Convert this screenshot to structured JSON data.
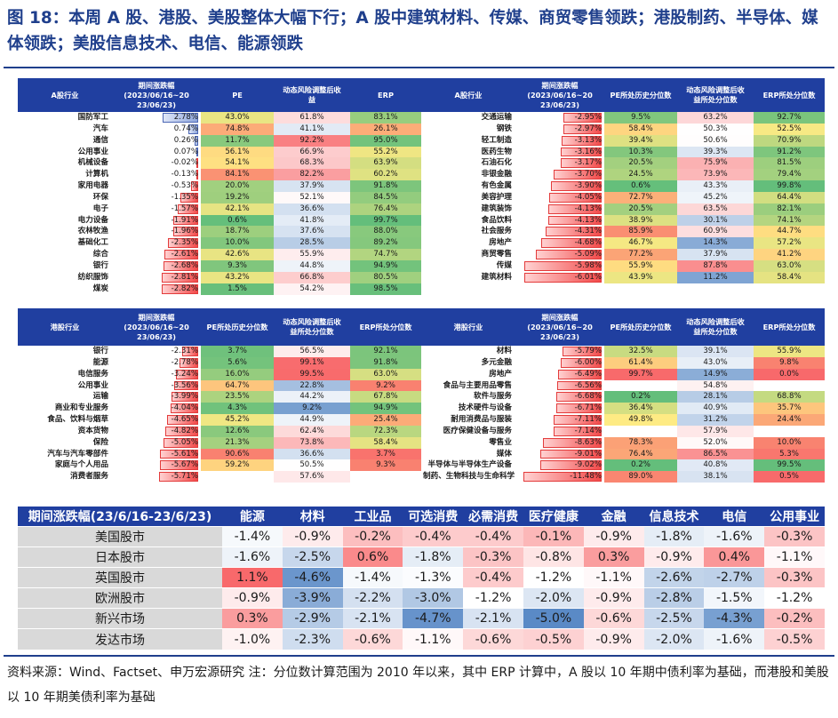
{
  "title": "图 18：本周 A 股、港股、美股整体大幅下行；A 股中建筑材料、传媒、商贸零售领跌；港股制药、半导体、媒体领跌；美股信息技术、电信、能源领跌",
  "a_headers": [
    "A股行业",
    "期间涨跌幅\n(2023/06/16~20\n23/06/23)",
    "PE",
    "动态风险调整后收\n益",
    "ERP"
  ],
  "a_right_headers": [
    "A股行业",
    "期间涨跌幅\n(2023/06/16~20\n23/06/23)",
    "PE所处历史分位数",
    "动态风险调整后收\n益所处分位数",
    "ERP所处分位数"
  ],
  "hk_headers": [
    "港股行业",
    "期间涨跌幅\n(2023/06/16~20\n23/06/23)",
    "PE所处历史分位数",
    "动态风险调整后收\n益所处分位数",
    "ERP所处分位数"
  ],
  "us_headers": [
    "港股行业",
    "期间涨跌幅\n(2023/06/16~20\n23/06/23)",
    "PE所处历史分位数",
    "动态风险调整后收\n益所处分位数",
    "ERP所处分位数"
  ],
  "a_left_rows": [
    {
      "name": "国防军工",
      "chg": "2.78%",
      "chg_v": 2.78,
      "pe": "43.0%",
      "pe_v": 43.0,
      "risk": "61.8%",
      "risk_v": 61.8,
      "erp": "83.1%",
      "erp_v": 83.1
    },
    {
      "name": "汽车",
      "chg": "0.74%",
      "chg_v": 0.74,
      "pe": "74.8%",
      "pe_v": 74.8,
      "risk": "41.1%",
      "risk_v": 41.1,
      "erp": "26.1%",
      "erp_v": 26.1
    },
    {
      "name": "通信",
      "chg": "0.26%",
      "chg_v": 0.26,
      "pe": "11.7%",
      "pe_v": 11.7,
      "risk": "92.2%",
      "risk_v": 92.2,
      "erp": "95.0%",
      "erp_v": 95.0
    },
    {
      "name": "公用事业",
      "chg": "0.07%",
      "chg_v": 0.07,
      "pe": "56.1%",
      "pe_v": 56.1,
      "risk": "66.9%",
      "risk_v": 66.9,
      "erp": "55.2%",
      "erp_v": 55.2
    },
    {
      "name": "机械设备",
      "chg": "-0.02%",
      "chg_v": -0.02,
      "pe": "54.1%",
      "pe_v": 54.1,
      "risk": "68.3%",
      "risk_v": 68.3,
      "erp": "63.9%",
      "erp_v": 63.9
    },
    {
      "name": "计算机",
      "chg": "-0.13%",
      "chg_v": -0.13,
      "pe": "84.1%",
      "pe_v": 84.1,
      "risk": "82.2%",
      "risk_v": 82.2,
      "erp": "60.2%",
      "erp_v": 60.2
    },
    {
      "name": "家用电器",
      "chg": "-0.53%",
      "chg_v": -0.53,
      "pe": "20.0%",
      "pe_v": 20.0,
      "risk": "37.9%",
      "risk_v": 37.9,
      "erp": "91.8%",
      "erp_v": 91.8
    },
    {
      "name": "环保",
      "chg": "-1.35%",
      "chg_v": -1.35,
      "pe": "19.2%",
      "pe_v": 19.2,
      "risk": "52.1%",
      "risk_v": 52.1,
      "erp": "84.5%",
      "erp_v": 84.5
    },
    {
      "name": "电子",
      "chg": "-1.57%",
      "chg_v": -1.57,
      "pe": "42.1%",
      "pe_v": 42.1,
      "risk": "36.6%",
      "risk_v": 36.6,
      "erp": "76.4%",
      "erp_v": 76.4
    },
    {
      "name": "电力设备",
      "chg": "-1.91%",
      "chg_v": -1.91,
      "pe": "0.6%",
      "pe_v": 0.6,
      "risk": "41.8%",
      "risk_v": 41.8,
      "erp": "99.7%",
      "erp_v": 99.7
    },
    {
      "name": "农林牧渔",
      "chg": "-1.96%",
      "chg_v": -1.96,
      "pe": "18.7%",
      "pe_v": 18.7,
      "risk": "37.6%",
      "risk_v": 37.6,
      "erp": "88.0%",
      "erp_v": 88.0
    },
    {
      "name": "基础化工",
      "chg": "-2.35%",
      "chg_v": -2.35,
      "pe": "10.0%",
      "pe_v": 10.0,
      "risk": "28.5%",
      "risk_v": 28.5,
      "erp": "89.2%",
      "erp_v": 89.2
    },
    {
      "name": "综合",
      "chg": "-2.61%",
      "chg_v": -2.61,
      "pe": "42.6%",
      "pe_v": 42.6,
      "risk": "55.9%",
      "risk_v": 55.9,
      "erp": "74.7%",
      "erp_v": 74.7
    },
    {
      "name": "银行",
      "chg": "-2.68%",
      "chg_v": -2.68,
      "pe": "9.3%",
      "pe_v": 9.3,
      "risk": "44.8%",
      "risk_v": 44.8,
      "erp": "94.9%",
      "erp_v": 94.9
    },
    {
      "name": "纺织服饰",
      "chg": "-2.81%",
      "chg_v": -2.81,
      "pe": "43.2%",
      "pe_v": 43.2,
      "risk": "66.8%",
      "risk_v": 66.8,
      "erp": "80.5%",
      "erp_v": 80.5
    },
    {
      "name": "煤炭",
      "chg": "-2.82%",
      "chg_v": -2.82,
      "pe": "1.5%",
      "pe_v": 1.5,
      "risk": "54.2%",
      "risk_v": 54.2,
      "erp": "98.5%",
      "erp_v": 98.5
    }
  ],
  "a_right_rows": [
    {
      "name": "交通运输",
      "chg": "-2.95%",
      "chg_v": -2.95,
      "pe": "9.5%",
      "pe_v": 9.5,
      "risk": "63.2%",
      "risk_v": 63.2,
      "erp": "92.7%",
      "erp_v": 92.7
    },
    {
      "name": "钢铁",
      "chg": "-2.97%",
      "chg_v": -2.97,
      "pe": "58.4%",
      "pe_v": 58.4,
      "risk": "50.3%",
      "risk_v": 50.3,
      "erp": "52.5%",
      "erp_v": 52.5
    },
    {
      "name": "轻工制造",
      "chg": "-3.13%",
      "chg_v": -3.13,
      "pe": "39.4%",
      "pe_v": 39.4,
      "risk": "50.6%",
      "risk_v": 50.6,
      "erp": "70.9%",
      "erp_v": 70.9
    },
    {
      "name": "医药生物",
      "chg": "-3.16%",
      "chg_v": -3.16,
      "pe": "10.3%",
      "pe_v": 10.3,
      "risk": "39.3%",
      "risk_v": 39.3,
      "erp": "91.2%",
      "erp_v": 91.2
    },
    {
      "name": "石油石化",
      "chg": "-3.17%",
      "chg_v": -3.17,
      "pe": "20.5%",
      "pe_v": 20.5,
      "risk": "75.9%",
      "risk_v": 75.9,
      "erp": "81.5%",
      "erp_v": 81.5
    },
    {
      "name": "非银金融",
      "chg": "-3.70%",
      "chg_v": -3.7,
      "pe": "24.5%",
      "pe_v": 24.5,
      "risk": "73.9%",
      "risk_v": 73.9,
      "erp": "79.4%",
      "erp_v": 79.4
    },
    {
      "name": "有色金属",
      "chg": "-3.90%",
      "chg_v": -3.9,
      "pe": "0.6%",
      "pe_v": 0.6,
      "risk": "43.3%",
      "risk_v": 43.3,
      "erp": "99.8%",
      "erp_v": 99.8
    },
    {
      "name": "美容护理",
      "chg": "-4.05%",
      "chg_v": -4.05,
      "pe": "72.7%",
      "pe_v": 72.7,
      "risk": "45.2%",
      "risk_v": 45.2,
      "erp": "64.4%",
      "erp_v": 64.4
    },
    {
      "name": "建筑装饰",
      "chg": "-4.13%",
      "chg_v": -4.13,
      "pe": "20.5%",
      "pe_v": 20.5,
      "risk": "63.5%",
      "risk_v": 63.5,
      "erp": "82.1%",
      "erp_v": 82.1
    },
    {
      "name": "食品饮料",
      "chg": "-4.13%",
      "chg_v": -4.13,
      "pe": "38.9%",
      "pe_v": 38.9,
      "risk": "30.1%",
      "risk_v": 30.1,
      "erp": "74.1%",
      "erp_v": 74.1
    },
    {
      "name": "社会服务",
      "chg": "-4.31%",
      "chg_v": -4.31,
      "pe": "85.9%",
      "pe_v": 85.9,
      "risk": "60.9%",
      "risk_v": 60.9,
      "erp": "44.7%",
      "erp_v": 44.7
    },
    {
      "name": "房地产",
      "chg": "-4.68%",
      "chg_v": -4.68,
      "pe": "46.7%",
      "pe_v": 46.7,
      "risk": "14.3%",
      "risk_v": 14.3,
      "erp": "57.2%",
      "erp_v": 57.2
    },
    {
      "name": "商贸零售",
      "chg": "-5.09%",
      "chg_v": -5.09,
      "pe": "77.2%",
      "pe_v": 77.2,
      "risk": "37.9%",
      "risk_v": 37.9,
      "erp": "41.2%",
      "erp_v": 41.2
    },
    {
      "name": "传媒",
      "chg": "-5.98%",
      "chg_v": -5.98,
      "pe": "55.9%",
      "pe_v": 55.9,
      "risk": "87.8%",
      "risk_v": 87.8,
      "erp": "63.0%",
      "erp_v": 63.0
    },
    {
      "name": "建筑材料",
      "chg": "-6.01%",
      "chg_v": -6.01,
      "pe": "43.9%",
      "pe_v": 43.9,
      "risk": "11.2%",
      "risk_v": 11.2,
      "erp": "58.4%",
      "erp_v": 58.4
    }
  ],
  "hk_rows": [
    {
      "name": "银行",
      "chg": "-2.31%",
      "chg_v": -2.31,
      "pe": "3.7%",
      "pe_v": 3.7,
      "risk": "56.5%",
      "risk_v": 56.5,
      "erp": "92.1%",
      "erp_v": 92.1
    },
    {
      "name": "能源",
      "chg": "-2.78%",
      "chg_v": -2.78,
      "pe": "5.6%",
      "pe_v": 5.6,
      "risk": "99.1%",
      "risk_v": 99.1,
      "erp": "91.8%",
      "erp_v": 91.8
    },
    {
      "name": "电信服务",
      "chg": "-3.24%",
      "chg_v": -3.24,
      "pe": "16.0%",
      "pe_v": 16.0,
      "risk": "99.5%",
      "risk_v": 99.5,
      "erp": "63.0%",
      "erp_v": 63.0
    },
    {
      "name": "公用事业",
      "chg": "-3.56%",
      "chg_v": -3.56,
      "pe": "64.7%",
      "pe_v": 64.7,
      "risk": "22.8%",
      "risk_v": 22.8,
      "erp": "9.2%",
      "erp_v": 9.2
    },
    {
      "name": "运输",
      "chg": "-3.99%",
      "chg_v": -3.99,
      "pe": "23.5%",
      "pe_v": 23.5,
      "risk": "44.2%",
      "risk_v": 44.2,
      "erp": "67.8%",
      "erp_v": 67.8
    },
    {
      "name": "商业和专业服务",
      "chg": "-4.04%",
      "chg_v": -4.04,
      "pe": "4.3%",
      "pe_v": 4.3,
      "risk": "9.2%",
      "risk_v": 9.2,
      "erp": "94.9%",
      "erp_v": 94.9
    },
    {
      "name": "食品、饮料与烟草",
      "chg": "-4.65%",
      "chg_v": -4.65,
      "pe": "45.2%",
      "pe_v": 45.2,
      "risk": "44.9%",
      "risk_v": 44.9,
      "erp": "25.4%",
      "erp_v": 25.4
    },
    {
      "name": "资本货物",
      "chg": "-4.82%",
      "chg_v": -4.82,
      "pe": "12.6%",
      "pe_v": 12.6,
      "risk": "62.4%",
      "risk_v": 62.4,
      "erp": "72.3%",
      "erp_v": 72.3
    },
    {
      "name": "保险",
      "chg": "-5.05%",
      "chg_v": -5.05,
      "pe": "21.3%",
      "pe_v": 21.3,
      "risk": "73.8%",
      "risk_v": 73.8,
      "erp": "58.4%",
      "erp_v": 58.4
    },
    {
      "name": "汽车与汽车零部件",
      "chg": "-5.61%",
      "chg_v": -5.61,
      "pe": "90.6%",
      "pe_v": 90.6,
      "risk": "36.6%",
      "risk_v": 36.6,
      "erp": "3.7%",
      "erp_v": 3.7
    },
    {
      "name": "家庭与个人用品",
      "chg": "-5.67%",
      "chg_v": -5.67,
      "pe": "59.2%",
      "pe_v": 59.2,
      "risk": "50.5%",
      "risk_v": 50.5,
      "erp": "9.3%",
      "erp_v": 9.3
    },
    {
      "name": "消费者服务",
      "chg": "-5.71%",
      "chg_v": -5.71,
      "pe": "",
      "pe_v": null,
      "risk": "57.6%",
      "risk_v": 57.6,
      "erp": "",
      "erp_v": null
    }
  ],
  "us_rows": [
    {
      "name": "材料",
      "chg": "-5.79%",
      "chg_v": -5.79,
      "pe": "32.5%",
      "pe_v": 32.5,
      "risk": "39.1%",
      "risk_v": 39.1,
      "erp": "55.9%",
      "erp_v": 55.9
    },
    {
      "name": "多元金融",
      "chg": "-6.00%",
      "chg_v": -6.0,
      "pe": "61.4%",
      "pe_v": 61.4,
      "risk": "43.0%",
      "risk_v": 43.0,
      "erp": "9.8%",
      "erp_v": 9.8
    },
    {
      "name": "房地产",
      "chg": "-6.49%",
      "chg_v": -6.49,
      "pe": "99.7%",
      "pe_v": 99.7,
      "risk": "14.9%",
      "risk_v": 14.9,
      "erp": "0.0%",
      "erp_v": 0.0
    },
    {
      "name": "食品与主要用品零售",
      "chg": "-6.56%",
      "chg_v": -6.56,
      "pe": "",
      "pe_v": null,
      "risk": "54.8%",
      "risk_v": 54.8,
      "erp": "",
      "erp_v": null
    },
    {
      "name": "软件与服务",
      "chg": "-6.68%",
      "chg_v": -6.68,
      "pe": "0.2%",
      "pe_v": 0.2,
      "risk": "28.1%",
      "risk_v": 28.1,
      "erp": "68.8%",
      "erp_v": 68.8
    },
    {
      "name": "技术硬件与设备",
      "chg": "-6.71%",
      "chg_v": -6.71,
      "pe": "36.4%",
      "pe_v": 36.4,
      "risk": "40.9%",
      "risk_v": 40.9,
      "erp": "35.7%",
      "erp_v": 35.7
    },
    {
      "name": "耐用消费品与服装",
      "chg": "-7.11%",
      "chg_v": -7.11,
      "pe": "49.8%",
      "pe_v": 49.8,
      "risk": "31.2%",
      "risk_v": 31.2,
      "erp": "24.4%",
      "erp_v": 24.4
    },
    {
      "name": "医疗保健设备与服务",
      "chg": "-7.14%",
      "chg_v": -7.14,
      "pe": "",
      "pe_v": null,
      "risk": "57.9%",
      "risk_v": 57.9,
      "erp": "",
      "erp_v": null
    },
    {
      "name": "零售业",
      "chg": "-8.63%",
      "chg_v": -8.63,
      "pe": "78.3%",
      "pe_v": 78.3,
      "risk": "52.0%",
      "risk_v": 52.0,
      "erp": "10.0%",
      "erp_v": 10.0
    },
    {
      "name": "媒体",
      "chg": "-9.01%",
      "chg_v": -9.01,
      "pe": "76.4%",
      "pe_v": 76.4,
      "risk": "86.5%",
      "risk_v": 86.5,
      "erp": "5.3%",
      "erp_v": 5.3
    },
    {
      "name": "半导体与半导体生产设备",
      "chg": "-9.02%",
      "chg_v": -9.02,
      "pe": "0.2%",
      "pe_v": 0.2,
      "risk": "40.8%",
      "risk_v": 40.8,
      "erp": "99.5%",
      "erp_v": 99.5
    },
    {
      "name": "制药、生物科技与生命科学",
      "chg": "-11.48%",
      "chg_v": -11.48,
      "pe": "89.0%",
      "pe_v": 89.0,
      "risk": "38.1%",
      "risk_v": 38.1,
      "erp": "0.5%",
      "erp_v": 0.5
    }
  ],
  "bottom": {
    "corner": "期间涨跌幅(23/6/16-23/6/23)",
    "sectors": [
      "能源",
      "材料",
      "工业品",
      "可选消费",
      "必需消费",
      "医疗健康",
      "金融",
      "信息技术",
      "电信",
      "公用事业"
    ],
    "rows": [
      {
        "market": "美国股市",
        "values": [
          "-1.4%",
          "-0.9%",
          "-0.2%",
          "-0.4%",
          "-0.4%",
          "-0.1%",
          "-0.9%",
          "-1.8%",
          "-1.6%",
          "-0.3%"
        ],
        "nums": [
          -1.4,
          -0.9,
          -0.2,
          -0.4,
          -0.4,
          -0.1,
          -0.9,
          -1.8,
          -1.6,
          -0.3
        ]
      },
      {
        "market": "日本股市",
        "values": [
          "-1.6%",
          "-2.5%",
          "0.6%",
          "-1.8%",
          "-0.3%",
          "-0.8%",
          "0.3%",
          "-0.9%",
          "0.4%",
          "-1.1%"
        ],
        "nums": [
          -1.6,
          -2.5,
          0.6,
          -1.8,
          -0.3,
          -0.8,
          0.3,
          -0.9,
          0.4,
          -1.1
        ]
      },
      {
        "market": "英国股市",
        "values": [
          "1.1%",
          "-4.6%",
          "-1.4%",
          "-1.3%",
          "-0.4%",
          "-1.2%",
          "-1.1%",
          "-2.6%",
          "-2.7%",
          "-0.3%"
        ],
        "nums": [
          1.1,
          -4.6,
          -1.4,
          -1.3,
          -0.4,
          -1.2,
          -1.1,
          -2.6,
          -2.7,
          -0.3
        ]
      },
      {
        "market": "欧洲股市",
        "values": [
          "-0.9%",
          "-3.9%",
          "-2.2%",
          "-3.0%",
          "-1.2%",
          "-2.0%",
          "-0.9%",
          "-2.8%",
          "-1.5%",
          "-1.2%"
        ],
        "nums": [
          -0.9,
          -3.9,
          -2.2,
          -3.0,
          -1.2,
          -2.0,
          -0.9,
          -2.8,
          -1.5,
          -1.2
        ]
      },
      {
        "market": "新兴市场",
        "values": [
          "0.3%",
          "-2.9%",
          "-2.1%",
          "-4.7%",
          "-2.1%",
          "-5.0%",
          "-0.6%",
          "-2.5%",
          "-4.3%",
          "-0.2%"
        ],
        "nums": [
          0.3,
          -2.9,
          -2.1,
          -4.7,
          -2.1,
          -5.0,
          -0.6,
          -2.5,
          -4.3,
          -0.2
        ]
      },
      {
        "market": "发达市场",
        "values": [
          "-1.0%",
          "-2.3%",
          "-0.6%",
          "-1.1%",
          "-0.6%",
          "-0.5%",
          "-0.9%",
          "-2.0%",
          "-1.6%",
          "-0.5%"
        ],
        "nums": [
          -1.0,
          -2.3,
          -0.6,
          -1.1,
          -0.6,
          -0.5,
          -0.9,
          -2.0,
          -1.6,
          -0.5
        ]
      }
    ]
  },
  "source": "资料来源：Wind、Factset、申万宏源研究 注：分位数计算范围为 2010 年以来，其中 ERP 计算中，A 股以 10 年期中债利率为基础，而港股和美股以 10 年期美债利率为基础",
  "colors": {
    "header": "#203fa0",
    "title": "#1f3f8c",
    "red": "#f8696b",
    "yellow": "#ffeb84",
    "green": "#63be7b",
    "blue": "#5a8ac6"
  }
}
